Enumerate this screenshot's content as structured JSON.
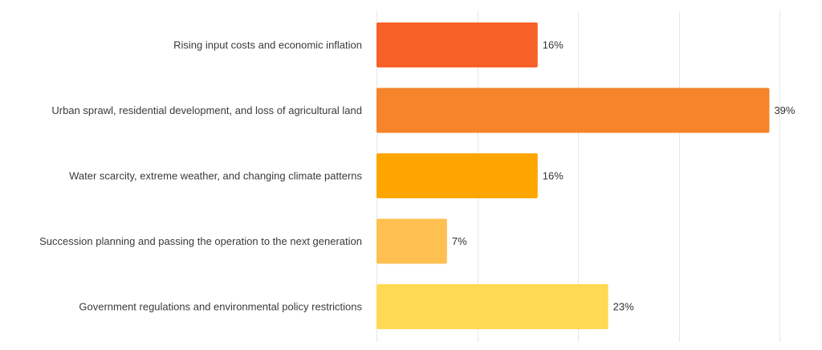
{
  "chart_data": {
    "type": "bar",
    "orientation": "horizontal",
    "title": "",
    "xlabel": "",
    "ylabel": "",
    "categories": [
      "Rising input costs and economic inflation",
      "Urban sprawl, residential development, and loss of agricultural land",
      "Water scarcity, extreme weather, and changing climate patterns",
      "Succession planning and passing the operation to the next generation",
      "Government regulations and environmental policy restrictions"
    ],
    "values": [
      16,
      39,
      16,
      7,
      23
    ],
    "value_labels": [
      "16%",
      "39%",
      "16%",
      "7%",
      "23%"
    ],
    "colors": [
      "#f76128",
      "#f5842b",
      "#fea500",
      "#ffc052",
      "#ffd952"
    ],
    "xlim": [
      0,
      40
    ],
    "grid": true,
    "legend": "none"
  }
}
